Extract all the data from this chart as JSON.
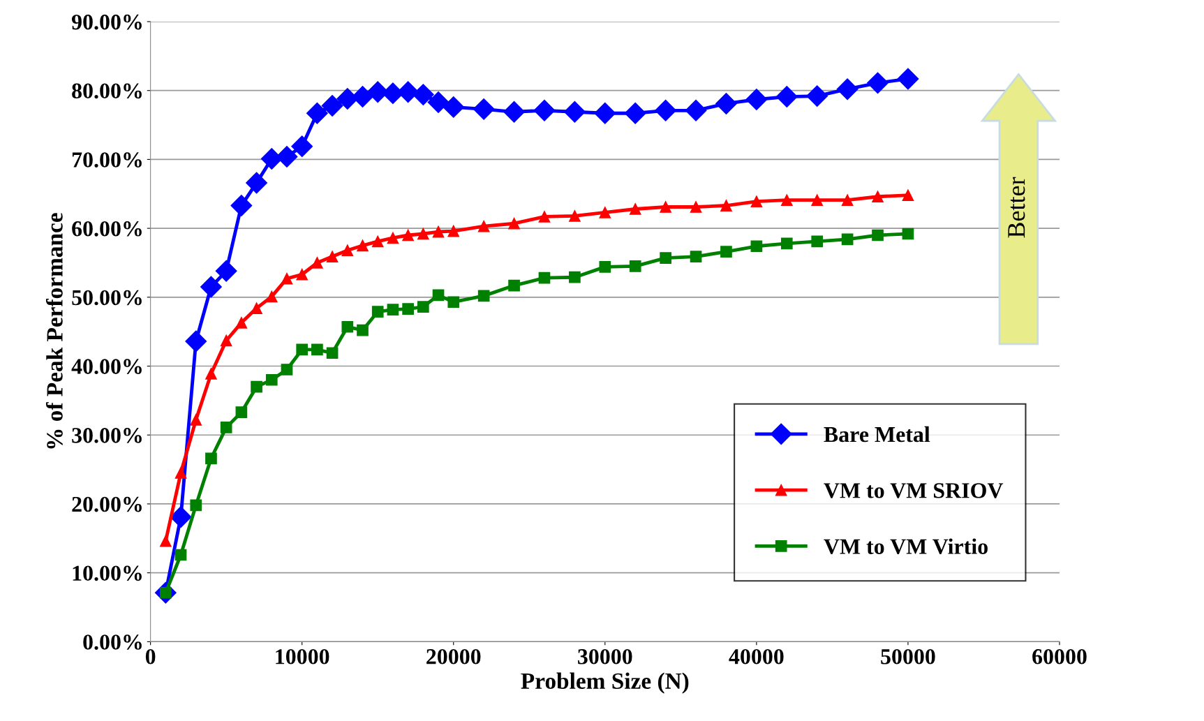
{
  "chart_data": {
    "type": "line",
    "xlabel": "Problem Size (N)",
    "ylabel": "% of Peak Performance",
    "x": [
      1000,
      2000,
      3000,
      4000,
      5000,
      6000,
      7000,
      8000,
      9000,
      10000,
      11000,
      12000,
      13000,
      14000,
      15000,
      16000,
      17000,
      18000,
      19000,
      20000,
      22000,
      24000,
      26000,
      28000,
      30000,
      32000,
      34000,
      36000,
      38000,
      40000,
      42000,
      44000,
      46000,
      48000,
      50000
    ],
    "series": [
      {
        "name": "Bare Metal",
        "color": "#0000ff",
        "marker": "diamond",
        "values": [
          7.1,
          18.1,
          43.6,
          51.5,
          53.8,
          63.3,
          66.6,
          70.1,
          70.4,
          71.9,
          76.7,
          77.8,
          78.8,
          79.1,
          79.8,
          79.6,
          79.8,
          79.4,
          78.3,
          77.6,
          77.3,
          76.9,
          77.1,
          76.9,
          76.7,
          76.7,
          77.1,
          77.1,
          78.1,
          78.7,
          79.1,
          79.2,
          80.2,
          81.1,
          81.7
        ]
      },
      {
        "name": "VM to VM SRIOV",
        "color": "#ff0000",
        "marker": "triangle",
        "values": [
          14.6,
          24.5,
          32.2,
          38.9,
          43.7,
          46.3,
          48.4,
          50.1,
          52.7,
          53.3,
          55.0,
          55.9,
          56.8,
          57.5,
          58.1,
          58.6,
          59.0,
          59.2,
          59.5,
          59.6,
          60.3,
          60.7,
          61.7,
          61.8,
          62.3,
          62.8,
          63.1,
          63.1,
          63.3,
          63.9,
          64.1,
          64.1,
          64.1,
          64.6,
          64.8
        ]
      },
      {
        "name": "VM to VM Virtio",
        "color": "#008000",
        "marker": "square",
        "values": [
          7.1,
          12.6,
          19.8,
          26.6,
          31.1,
          33.3,
          37.0,
          38.0,
          39.5,
          42.4,
          42.4,
          41.9,
          45.7,
          45.2,
          47.9,
          48.2,
          48.3,
          48.6,
          50.3,
          49.3,
          50.2,
          51.7,
          52.8,
          52.9,
          54.4,
          54.5,
          55.7,
          55.9,
          56.6,
          57.4,
          57.8,
          58.1,
          58.4,
          59.0,
          59.2
        ]
      }
    ],
    "xlim": [
      0,
      60000
    ],
    "xticks": [
      0,
      10000,
      20000,
      30000,
      40000,
      50000,
      60000
    ],
    "ylim": [
      0,
      90
    ],
    "yticks": [
      {
        "value": 0,
        "label": "0.00%"
      },
      {
        "value": 10,
        "label": "10.00%"
      },
      {
        "value": 20,
        "label": "20.00%"
      },
      {
        "value": 30,
        "label": "30.00%"
      },
      {
        "value": 40,
        "label": "40.00%"
      },
      {
        "value": 50,
        "label": "50.00%"
      },
      {
        "value": 60,
        "label": "60.00%"
      },
      {
        "value": 70,
        "label": "70.00%"
      },
      {
        "value": 80,
        "label": "80.00%"
      },
      {
        "value": 90,
        "label": "90.00%"
      }
    ],
    "grid": "y",
    "legend": "lower right",
    "line_style": "solid",
    "annotations": [
      "Better"
    ]
  }
}
